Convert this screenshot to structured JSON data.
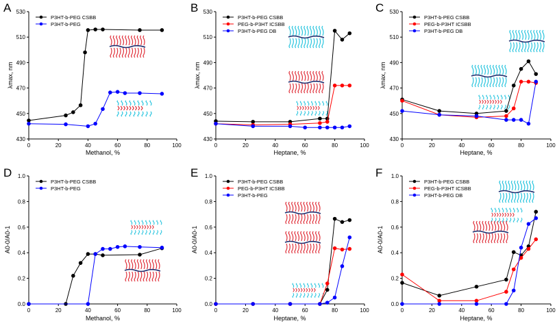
{
  "figure": {
    "background": "#ffffff"
  },
  "colors": {
    "black": "#000000",
    "red": "#ff0000",
    "blue": "#0000ff",
    "cyan": "#27c4de",
    "crimson": "#e0303a",
    "navy": "#1a2a6c"
  },
  "chart_data": [
    {
      "panel": "A",
      "type": "line",
      "xlabel": "Methanol, %",
      "ylabel": "λmax, nm",
      "xlim": [
        0,
        100
      ],
      "ylim": [
        430,
        530
      ],
      "xticks": [
        "0",
        "20",
        "40",
        "60",
        "80",
        "100"
      ],
      "yticks": [
        "430",
        "450",
        "470",
        "490",
        "510",
        "530"
      ],
      "legend_position": "top-left",
      "series": [
        {
          "name": "P3HT-b-PEG CSBB",
          "color": "#000000",
          "x": [
            0,
            25,
            30,
            35,
            38,
            40,
            45,
            50,
            75,
            90
          ],
          "y": [
            444.5,
            448.5,
            451,
            456.5,
            498,
            515.5,
            516,
            516,
            515.5,
            515.5
          ]
        },
        {
          "name": "P3HT-b-PEG",
          "color": "#0000ff",
          "x": [
            0,
            25,
            40,
            45,
            50,
            55,
            60,
            65,
            75,
            90
          ],
          "y": [
            442,
            441.5,
            440,
            442,
            453.5,
            466.5,
            467,
            466,
            466,
            465.5
          ]
        }
      ]
    },
    {
      "panel": "B",
      "type": "line",
      "xlabel": "Heptane, %",
      "ylabel": "λmax, nm",
      "xlim": [
        0,
        100
      ],
      "ylim": [
        430,
        530
      ],
      "xticks": [
        "0",
        "20",
        "40",
        "60",
        "80",
        "100"
      ],
      "yticks": [
        "430",
        "450",
        "470",
        "490",
        "510",
        "530"
      ],
      "legend_position": "top-left",
      "series": [
        {
          "name": "P3HT-b-PEG CSBB",
          "color": "#000000",
          "x": [
            0,
            25,
            50,
            70,
            75,
            80,
            85,
            90
          ],
          "y": [
            444,
            443.5,
            443.5,
            446,
            446,
            515,
            508,
            513
          ]
        },
        {
          "name": "PEG-b-P3HT ICSBB",
          "color": "#ff0000",
          "x": [
            0,
            25,
            50,
            70,
            75,
            80,
            85,
            90
          ],
          "y": [
            442,
            441,
            441.5,
            442.5,
            443.5,
            472,
            472,
            472
          ]
        },
        {
          "name": "P3HT-b-PEG DB",
          "color": "#0000ff",
          "x": [
            0,
            25,
            50,
            60,
            70,
            75,
            80,
            85,
            90
          ],
          "y": [
            442,
            440,
            440,
            439,
            439,
            439,
            439,
            439,
            440
          ]
        }
      ]
    },
    {
      "panel": "C",
      "type": "line",
      "xlabel": "Heptane, %",
      "ylabel": "λmax, nm",
      "xlim": [
        0,
        100
      ],
      "ylim": [
        430,
        530
      ],
      "xticks": [
        "0",
        "20",
        "40",
        "60",
        "80",
        "100"
      ],
      "yticks": [
        "430",
        "450",
        "470",
        "490",
        "510",
        "530"
      ],
      "legend_position": "top-left",
      "series": [
        {
          "name": "P3HT-b-PEG CSBB",
          "color": "#000000",
          "x": [
            0,
            25,
            50,
            70,
            75,
            80,
            85,
            90
          ],
          "y": [
            461,
            452,
            450,
            452,
            472,
            485,
            491,
            481
          ]
        },
        {
          "name": "PEG-b-P3HT ICSBB",
          "color": "#ff0000",
          "x": [
            0,
            25,
            50,
            70,
            75,
            80,
            85,
            90
          ],
          "y": [
            460,
            449,
            447,
            448,
            454,
            475,
            475,
            474
          ]
        },
        {
          "name": "P3HT-b-PEG DB",
          "color": "#0000ff",
          "x": [
            0,
            25,
            50,
            70,
            75,
            80,
            85,
            90
          ],
          "y": [
            452,
            449,
            448,
            445,
            445,
            445,
            442,
            475
          ]
        }
      ]
    },
    {
      "panel": "D",
      "type": "line",
      "xlabel": "Methanol, %",
      "ylabel": "A0-0/A0-1",
      "xlim": [
        0,
        100
      ],
      "ylim": [
        0,
        1.0
      ],
      "xticks": [
        "0",
        "20",
        "40",
        "60",
        "80",
        "100"
      ],
      "yticks": [
        "0.0",
        "0.2",
        "0.4",
        "0.6",
        "0.8",
        "1.0"
      ],
      "legend_position": "top-left",
      "series": [
        {
          "name": "P3HT-b-PEG CSBB",
          "color": "#000000",
          "x": [
            0,
            25,
            30,
            35,
            40,
            45,
            50,
            75,
            90
          ],
          "y": [
            0,
            0,
            0.22,
            0.32,
            0.39,
            0.39,
            0.38,
            0.385,
            0.435
          ]
        },
        {
          "name": "P3HT-b-PEG",
          "color": "#0000ff",
          "x": [
            0,
            40,
            45,
            50,
            55,
            60,
            65,
            75,
            90
          ],
          "y": [
            0,
            0,
            0.39,
            0.43,
            0.43,
            0.445,
            0.45,
            0.445,
            0.44
          ]
        }
      ]
    },
    {
      "panel": "E",
      "type": "line",
      "xlabel": "Heptane, %",
      "ylabel": "A0-0/A0-1",
      "xlim": [
        0,
        100
      ],
      "ylim": [
        0,
        1.0
      ],
      "xticks": [
        "0",
        "20",
        "40",
        "60",
        "80",
        "100"
      ],
      "yticks": [
        "0.0",
        "0.2",
        "0.4",
        "0.6",
        "0.8",
        "1.0"
      ],
      "legend_position": "top-left",
      "series": [
        {
          "name": "P3HT-b-PEG CSBB",
          "color": "#000000",
          "x": [
            0,
            25,
            50,
            70,
            75,
            80,
            85,
            90
          ],
          "y": [
            0,
            0,
            0,
            0,
            0.11,
            0.665,
            0.64,
            0.655
          ]
        },
        {
          "name": "PEG-b-P3HT ICSBB",
          "color": "#ff0000",
          "x": [
            0,
            25,
            50,
            70,
            75,
            80,
            85,
            90
          ],
          "y": [
            0,
            0,
            0,
            0,
            0.16,
            0.435,
            0.425,
            0.43
          ]
        },
        {
          "name": "P3HT-b-PEG",
          "color": "#0000ff",
          "x": [
            0,
            25,
            50,
            70,
            75,
            80,
            85,
            90
          ],
          "y": [
            0,
            0,
            0,
            0,
            0.01,
            0.05,
            0.295,
            0.52
          ]
        }
      ]
    },
    {
      "panel": "F",
      "type": "line",
      "xlabel": "Heptane, %",
      "ylabel": "A0-0/A0-1",
      "xlim": [
        0,
        100
      ],
      "ylim": [
        0,
        1.0
      ],
      "xticks": [
        "0",
        "20",
        "40",
        "60",
        "80",
        "100"
      ],
      "yticks": [
        "0.0",
        "0.2",
        "0.4",
        "0.6",
        "0.8",
        "1.0"
      ],
      "legend_position": "top-left",
      "series": [
        {
          "name": "P3HT-b-PEG CSBB",
          "color": "#000000",
          "x": [
            0,
            25,
            50,
            70,
            75,
            80,
            85,
            90
          ],
          "y": [
            0.165,
            0.065,
            0.135,
            0.19,
            0.405,
            0.38,
            0.45,
            0.72
          ]
        },
        {
          "name": "PEG-b-P3HT ICSBB",
          "color": "#ff0000",
          "x": [
            0,
            25,
            50,
            70,
            75,
            80,
            85,
            90
          ],
          "y": [
            0.23,
            0.025,
            0.025,
            0.095,
            0.27,
            0.36,
            0.43,
            0.505
          ]
        },
        {
          "name": "P3HT-b-PEG DB",
          "color": "#0000ff",
          "x": [
            0,
            25,
            50,
            70,
            75,
            80,
            85,
            90
          ],
          "y": [
            0,
            0,
            0,
            0,
            0.105,
            0.44,
            0.625,
            0.67
          ]
        }
      ]
    }
  ]
}
